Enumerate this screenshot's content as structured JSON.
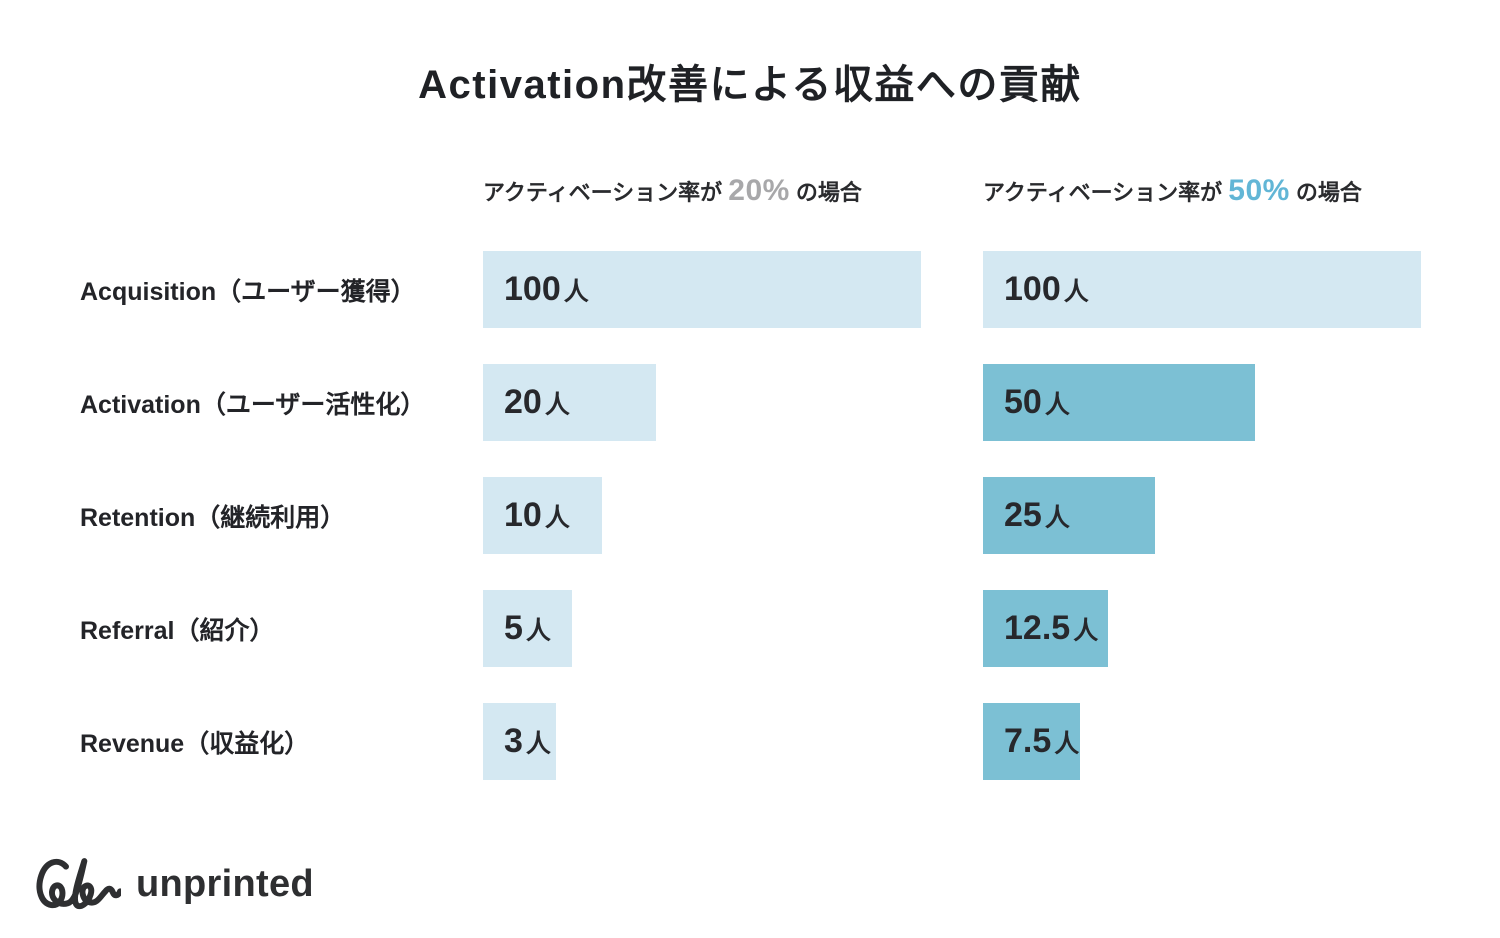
{
  "title": "Activation改善による収益への貢献",
  "headers": {
    "col20": {
      "prefix": "アクティベーション率が ",
      "rate": "20%",
      "suffix": " の場合"
    },
    "col50": {
      "prefix": "アクティベーション率が ",
      "rate": "50%",
      "suffix": " の場合"
    }
  },
  "funnel": {
    "rows": [
      {
        "label": "Acquisition（ユーザー獲得）",
        "bar20": {
          "num": "100",
          "unit": "人",
          "width_pct": 100,
          "shade": "light"
        },
        "bar50": {
          "num": "100",
          "unit": "人",
          "width_pct": 100,
          "shade": "light"
        }
      },
      {
        "label": "Activation（ユーザー活性化）",
        "bar20": {
          "num": "20",
          "unit": "人",
          "width_pct": 39.4,
          "shade": "light"
        },
        "bar50": {
          "num": "50",
          "unit": "人",
          "width_pct": 62,
          "shade": "dark"
        }
      },
      {
        "label": "Retention（継続利用）",
        "bar20": {
          "num": "10",
          "unit": "人",
          "width_pct": 27.1,
          "shade": "light"
        },
        "bar50": {
          "num": "25",
          "unit": "人",
          "width_pct": 39.3,
          "shade": "dark"
        }
      },
      {
        "label": "Referral（紹介）",
        "bar20": {
          "num": "5",
          "unit": "人",
          "width_pct": 20.3,
          "shade": "light"
        },
        "bar50": {
          "num": "12.5",
          "unit": "人",
          "width_pct": 28.5,
          "shade": "dark"
        }
      },
      {
        "label": "Revenue（収益化）",
        "bar20": {
          "num": "3",
          "unit": "人",
          "width_pct": 16.7,
          "shade": "light"
        },
        "bar50": {
          "num": "7.5",
          "unit": "人",
          "width_pct": 22.1,
          "shade": "dark"
        }
      }
    ]
  },
  "colors": {
    "bar_light": "#d4e8f2",
    "bar_dark": "#7cc0d4",
    "rate20_gray": "#a8a8aa",
    "rate50_blue": "#62b6d6",
    "title_text": "#1f2125",
    "logo_text": "#2e2f31"
  },
  "logo": {
    "name": "unprinted",
    "mark": "squiggle-un-icon"
  },
  "chart_data": {
    "type": "bar",
    "orientation": "horizontal",
    "title": "Activation改善による収益への貢献",
    "categories": [
      "Acquisition（ユーザー獲得）",
      "Activation（ユーザー活性化）",
      "Retention（継続利用）",
      "Referral（紹介）",
      "Revenue（収益化）"
    ],
    "series": [
      {
        "name": "アクティベーション率が 20% の場合",
        "values": [
          100,
          20,
          10,
          5,
          3
        ],
        "unit": "人",
        "data_labels": [
          "100人",
          "20人",
          "10人",
          "5人",
          "3人"
        ],
        "bar_colors": [
          "#d4e8f2",
          "#d4e8f2",
          "#d4e8f2",
          "#d4e8f2",
          "#d4e8f2"
        ]
      },
      {
        "name": "アクティベーション率が 50% の場合",
        "values": [
          100,
          50,
          25,
          12.5,
          7.5
        ],
        "unit": "人",
        "data_labels": [
          "100人",
          "50人",
          "25人",
          "12.5人",
          "7.5人"
        ],
        "bar_colors": [
          "#d4e8f2",
          "#7cc0d4",
          "#7cc0d4",
          "#7cc0d4",
          "#7cc0d4"
        ]
      }
    ],
    "legend": "none",
    "grid": false,
    "axes": "none",
    "value_labels_inside_bars": true,
    "bar_width_pct_of_max": {
      "series_20": [
        100,
        39.4,
        27.1,
        20.3,
        16.7
      ],
      "series_50": [
        100,
        62,
        39.3,
        28.5,
        22.1
      ]
    }
  }
}
